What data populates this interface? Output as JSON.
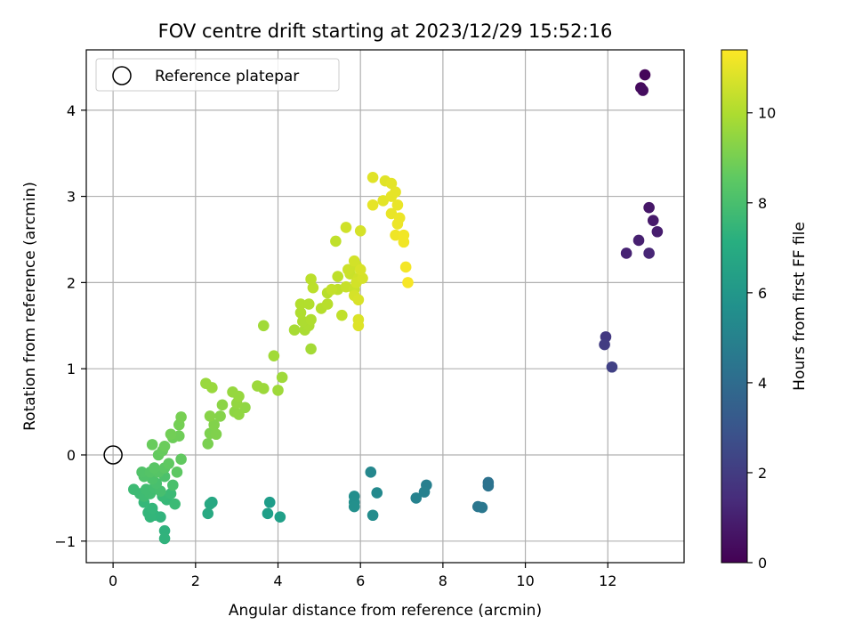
{
  "chart_data": {
    "type": "scatter",
    "title": "FOV centre drift starting at 2023/12/29 15:52:16",
    "xlabel": "Angular distance from reference (arcmin)",
    "ylabel": "Rotation from reference (arcmin)",
    "xlim": [
      -0.65,
      13.85
    ],
    "ylim": [
      -1.25,
      4.7
    ],
    "xticks": [
      0,
      2,
      4,
      6,
      8,
      10,
      12
    ],
    "yticks": [
      -1,
      0,
      1,
      2,
      3,
      4
    ],
    "xtick_labels": [
      "0",
      "2",
      "4",
      "6",
      "8",
      "10",
      "12"
    ],
    "ytick_labels": [
      "−1",
      "0",
      "1",
      "2",
      "3",
      "4"
    ],
    "grid": true,
    "legend": {
      "position": "top-left",
      "entries": [
        "Reference platepar"
      ]
    },
    "colormap": "viridis",
    "colorbar": {
      "label": "Hours from first FF file",
      "range": [
        0,
        11.4
      ],
      "ticks": [
        0,
        2,
        4,
        6,
        8,
        10
      ],
      "tick_labels": [
        "0",
        "2",
        "4",
        "6",
        "8",
        "10"
      ]
    },
    "reference_point": {
      "x": 0,
      "y": 0
    },
    "points": [
      [
        12.9,
        4.41,
        0.2
      ],
      [
        12.8,
        4.26,
        0.3
      ],
      [
        12.85,
        4.23,
        0.4
      ],
      [
        13.0,
        2.87,
        0.7
      ],
      [
        13.1,
        2.72,
        0.8
      ],
      [
        13.2,
        2.59,
        0.9
      ],
      [
        12.75,
        2.49,
        1.0
      ],
      [
        12.45,
        2.34,
        1.1
      ],
      [
        13.0,
        2.34,
        1.2
      ],
      [
        11.95,
        1.37,
        1.9
      ],
      [
        11.92,
        1.28,
        2.0
      ],
      [
        12.1,
        1.02,
        2.2
      ],
      [
        9.1,
        -0.32,
        4.3
      ],
      [
        9.1,
        -0.36,
        4.35
      ],
      [
        8.85,
        -0.6,
        4.5
      ],
      [
        8.95,
        -0.61,
        4.55
      ],
      [
        7.6,
        -0.35,
        4.9
      ],
      [
        7.55,
        -0.43,
        5.0
      ],
      [
        7.35,
        -0.5,
        5.05
      ],
      [
        6.25,
        -0.2,
        5.3
      ],
      [
        6.4,
        -0.44,
        5.4
      ],
      [
        6.3,
        -0.7,
        5.5
      ],
      [
        5.85,
        -0.48,
        5.6
      ],
      [
        5.85,
        -0.55,
        5.65
      ],
      [
        5.85,
        -0.6,
        5.7
      ],
      [
        3.8,
        -0.55,
        6.3
      ],
      [
        3.75,
        -0.68,
        6.4
      ],
      [
        4.05,
        -0.72,
        6.45
      ],
      [
        2.4,
        -0.55,
        6.8
      ],
      [
        2.35,
        -0.57,
        6.85
      ],
      [
        2.3,
        -0.68,
        6.9
      ],
      [
        1.25,
        -0.88,
        7.3
      ],
      [
        1.25,
        -0.97,
        7.35
      ],
      [
        1.15,
        -0.72,
        7.4
      ],
      [
        1.0,
        -0.7,
        7.45
      ],
      [
        0.85,
        -0.67,
        7.5
      ],
      [
        0.9,
        -0.72,
        7.5
      ],
      [
        0.95,
        -0.62,
        7.55
      ],
      [
        0.75,
        -0.55,
        7.6
      ],
      [
        1.3,
        -0.52,
        7.65
      ],
      [
        1.2,
        -0.48,
        7.7
      ],
      [
        1.5,
        -0.57,
        7.75
      ],
      [
        1.4,
        -0.45,
        7.75
      ],
      [
        0.5,
        -0.4,
        7.8
      ],
      [
        0.65,
        -0.45,
        7.8
      ],
      [
        0.75,
        -0.48,
        7.85
      ],
      [
        0.9,
        -0.45,
        7.9
      ],
      [
        0.8,
        -0.4,
        7.9
      ],
      [
        1.0,
        -0.38,
        7.95
      ],
      [
        1.15,
        -0.42,
        8.0
      ],
      [
        1.05,
        -0.33,
        8.05
      ],
      [
        1.45,
        -0.35,
        8.1
      ],
      [
        1.25,
        -0.25,
        8.15
      ],
      [
        0.95,
        -0.28,
        8.15
      ],
      [
        0.75,
        -0.25,
        8.2
      ],
      [
        0.7,
        -0.2,
        8.25
      ],
      [
        0.9,
        -0.2,
        8.3
      ],
      [
        1.1,
        -0.2,
        8.35
      ],
      [
        1.0,
        -0.15,
        8.4
      ],
      [
        1.25,
        -0.15,
        8.45
      ],
      [
        1.55,
        -0.2,
        8.5
      ],
      [
        1.35,
        -0.1,
        8.55
      ],
      [
        1.65,
        -0.05,
        8.6
      ],
      [
        1.1,
        0.0,
        8.65
      ],
      [
        1.2,
        0.05,
        8.7
      ],
      [
        0.95,
        0.12,
        8.75
      ],
      [
        1.25,
        0.1,
        8.8
      ],
      [
        1.45,
        0.2,
        8.85
      ],
      [
        1.6,
        0.22,
        8.9
      ],
      [
        1.4,
        0.24,
        8.95
      ],
      [
        1.6,
        0.35,
        9.0
      ],
      [
        1.65,
        0.44,
        9.05
      ],
      [
        2.3,
        0.13,
        9.1
      ],
      [
        2.35,
        0.25,
        9.15
      ],
      [
        2.5,
        0.24,
        9.2
      ],
      [
        2.45,
        0.35,
        9.25
      ],
      [
        2.6,
        0.45,
        9.3
      ],
      [
        2.35,
        0.45,
        9.35
      ],
      [
        2.65,
        0.58,
        9.4
      ],
      [
        2.95,
        0.5,
        9.45
      ],
      [
        3.05,
        0.47,
        9.5
      ],
      [
        3.2,
        0.55,
        9.5
      ],
      [
        3.0,
        0.6,
        9.55
      ],
      [
        3.05,
        0.68,
        9.6
      ],
      [
        2.9,
        0.73,
        9.6
      ],
      [
        2.4,
        0.78,
        9.65
      ],
      [
        2.25,
        0.83,
        9.65
      ],
      [
        3.5,
        0.8,
        9.7
      ],
      [
        3.65,
        0.77,
        9.7
      ],
      [
        4.0,
        0.75,
        9.75
      ],
      [
        4.1,
        0.9,
        9.75
      ],
      [
        3.9,
        1.15,
        9.8
      ],
      [
        4.8,
        1.23,
        9.85
      ],
      [
        3.65,
        1.5,
        9.8
      ],
      [
        4.4,
        1.45,
        9.9
      ],
      [
        4.65,
        1.45,
        9.95
      ],
      [
        4.75,
        1.5,
        10.0
      ],
      [
        4.6,
        1.55,
        10.0
      ],
      [
        4.8,
        1.57,
        10.05
      ],
      [
        4.55,
        1.65,
        10.05
      ],
      [
        4.55,
        1.75,
        10.1
      ],
      [
        4.75,
        1.75,
        10.1
      ],
      [
        5.05,
        1.7,
        10.15
      ],
      [
        5.2,
        1.75,
        10.2
      ],
      [
        5.2,
        1.88,
        10.2
      ],
      [
        4.85,
        1.94,
        10.25
      ],
      [
        4.8,
        2.04,
        10.25
      ],
      [
        5.45,
        1.92,
        10.3
      ],
      [
        5.45,
        2.07,
        10.3
      ],
      [
        5.55,
        1.62,
        10.35
      ],
      [
        5.4,
        2.48,
        10.35
      ],
      [
        5.3,
        1.92,
        10.4
      ],
      [
        5.65,
        1.95,
        10.45
      ],
      [
        5.75,
        2.1,
        10.5
      ],
      [
        5.85,
        1.92,
        10.5
      ],
      [
        5.7,
        2.15,
        10.55
      ],
      [
        5.9,
        2.2,
        10.55
      ],
      [
        5.95,
        2.05,
        10.6
      ],
      [
        5.85,
        2.25,
        10.65
      ],
      [
        5.9,
        2.0,
        10.65
      ],
      [
        6.05,
        2.05,
        10.7
      ],
      [
        5.85,
        1.85,
        10.7
      ],
      [
        5.95,
        1.8,
        10.75
      ],
      [
        6.0,
        2.15,
        10.75
      ],
      [
        5.95,
        1.57,
        10.8
      ],
      [
        5.95,
        1.5,
        10.85
      ],
      [
        5.65,
        2.64,
        10.6
      ],
      [
        6.0,
        2.6,
        10.7
      ],
      [
        6.3,
        3.22,
        10.9
      ],
      [
        6.6,
        3.18,
        10.9
      ],
      [
        6.75,
        3.15,
        10.95
      ],
      [
        6.55,
        2.95,
        10.95
      ],
      [
        6.75,
        3.0,
        11.0
      ],
      [
        6.85,
        3.05,
        11.0
      ],
      [
        6.3,
        2.9,
        11.0
      ],
      [
        6.9,
        2.9,
        11.05
      ],
      [
        6.75,
        2.8,
        11.05
      ],
      [
        6.95,
        2.75,
        11.1
      ],
      [
        6.9,
        2.68,
        11.1
      ],
      [
        6.85,
        2.55,
        11.15
      ],
      [
        7.05,
        2.47,
        11.2
      ],
      [
        7.05,
        2.55,
        11.2
      ],
      [
        7.1,
        2.18,
        11.25
      ],
      [
        7.15,
        2.0,
        11.3
      ]
    ]
  }
}
